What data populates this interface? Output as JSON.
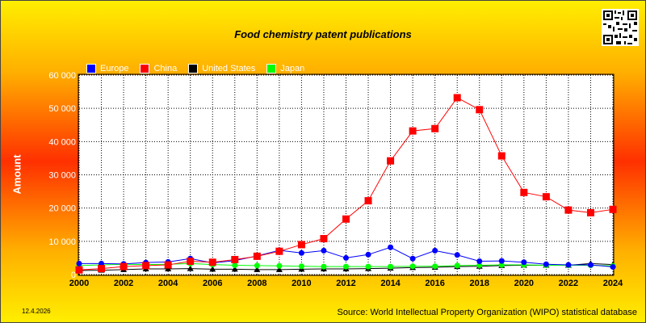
{
  "chart_data": {
    "type": "line",
    "title": "Food chemistry patent publications",
    "ylabel": "Amount",
    "xlabel": "",
    "ylim": [
      0,
      60000
    ],
    "yticks": [
      0,
      10000,
      20000,
      30000,
      40000,
      50000,
      60000
    ],
    "ytick_labels": [
      "0",
      "10 000",
      "20 000",
      "30 000",
      "40 000",
      "50 000",
      "60 000"
    ],
    "xlim": [
      2000,
      2024
    ],
    "xticks": [
      2000,
      2002,
      2004,
      2006,
      2008,
      2010,
      2012,
      2014,
      2016,
      2018,
      2020,
      2022,
      2024
    ],
    "x": [
      2000,
      2001,
      2002,
      2003,
      2004,
      2005,
      2006,
      2007,
      2008,
      2009,
      2010,
      2011,
      2012,
      2013,
      2014,
      2015,
      2016,
      2017,
      2018,
      2019,
      2020,
      2021,
      2022,
      2023,
      2024
    ],
    "grid": true,
    "legend_position": "top-left",
    "series": [
      {
        "name": "Europe",
        "color": "#0000ff",
        "marker": "circle",
        "values": [
          3300,
          3300,
          3200,
          3600,
          3800,
          4800,
          3500,
          4200,
          5600,
          7300,
          6500,
          7200,
          5000,
          6000,
          8200,
          4800,
          7200,
          5900,
          4000,
          4100,
          3700,
          3100,
          2900,
          2900,
          2300
        ]
      },
      {
        "name": "China",
        "color": "#ff0000",
        "marker": "square",
        "values": [
          1400,
          1800,
          2400,
          2700,
          2900,
          4000,
          3700,
          4500,
          5500,
          7000,
          9000,
          10800,
          16700,
          22200,
          34200,
          43200,
          43900,
          53200,
          49600,
          35700,
          24700,
          23400,
          19400,
          18600,
          19600
        ]
      },
      {
        "name": "United States",
        "color": "#000000",
        "marker": "triangle",
        "values": [
          1200,
          1300,
          1500,
          1700,
          1700,
          1800,
          1600,
          1600,
          1500,
          1500,
          1600,
          1700,
          1700,
          1800,
          1900,
          2100,
          2200,
          2400,
          2500,
          2700,
          2800,
          2800,
          2800,
          3300,
          3000
        ]
      },
      {
        "name": "Japan",
        "color": "#00ff00",
        "marker": "circle",
        "values": [
          2700,
          2900,
          3100,
          3000,
          3100,
          3300,
          3000,
          2800,
          2700,
          2600,
          2500,
          2400,
          2400,
          2400,
          2400,
          2500,
          2500,
          2700,
          2800,
          2900,
          2900,
          2800,
          2800,
          2800,
          2600
        ]
      }
    ],
    "source": "Source: World Intellectual Property Organization (WIPO) statistical database",
    "date": "12.4.2026"
  }
}
